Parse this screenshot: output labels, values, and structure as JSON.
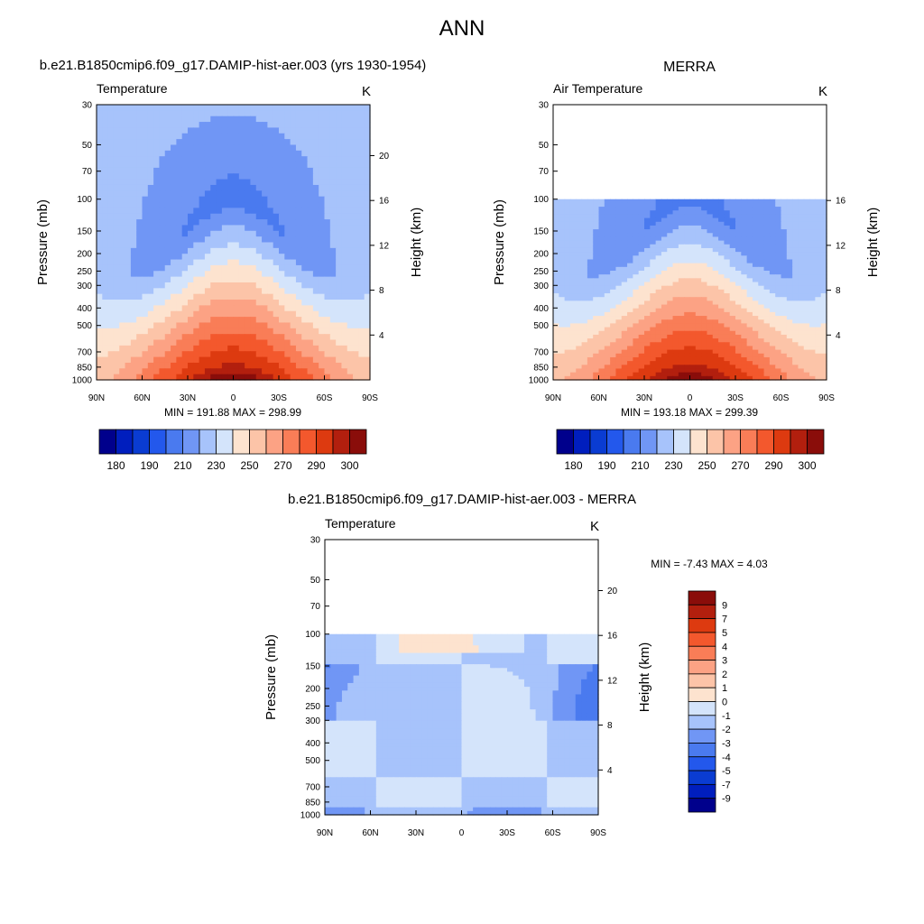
{
  "title": "ANN",
  "chart_data": [
    {
      "type": "heatmap",
      "panel": "model",
      "title": "b.e21.B1850cmip6.f09_g17.DAMIP-hist-aer.003 (yrs 1930-1954)",
      "left_label": "Temperature",
      "units": "K",
      "ylabel": "Pressure (mb)",
      "y2label": "Height (km)",
      "stats": "MIN = 191.88  MAX = 298.99",
      "min": 191.88,
      "max": 298.99,
      "x_ticks": [
        "90N",
        "60N",
        "30N",
        "0",
        "30S",
        "60S",
        "90S"
      ],
      "pressure_ticks": [
        30,
        50,
        70,
        100,
        150,
        200,
        250,
        300,
        400,
        500,
        700,
        850,
        1000
      ],
      "height_ticks": [
        4,
        8,
        12,
        16,
        20
      ],
      "data_top_pressure": 30,
      "colorbar_ticks": [
        "180",
        "190",
        "210",
        "230",
        "250",
        "270",
        "290",
        "300"
      ],
      "levels": [
        175,
        180,
        185,
        190,
        200,
        210,
        220,
        230,
        240,
        250,
        260,
        270,
        280,
        290,
        295,
        300
      ]
    },
    {
      "type": "heatmap",
      "panel": "obs",
      "title": "MERRA",
      "left_label": "Air Temperature",
      "units": "K",
      "ylabel": "Pressure (mb)",
      "y2label": "Height (km)",
      "stats": "MIN = 193.18  MAX = 299.39",
      "min": 193.18,
      "max": 299.39,
      "x_ticks": [
        "90N",
        "60N",
        "30N",
        "0",
        "30S",
        "60S",
        "90S"
      ],
      "pressure_ticks": [
        30,
        50,
        70,
        100,
        150,
        200,
        250,
        300,
        400,
        500,
        700,
        850,
        1000
      ],
      "height_ticks": [
        4,
        8,
        12,
        16
      ],
      "data_top_pressure": 100,
      "colorbar_ticks": [
        "180",
        "190",
        "210",
        "230",
        "250",
        "270",
        "290",
        "300"
      ],
      "levels": [
        175,
        180,
        185,
        190,
        200,
        210,
        220,
        230,
        240,
        250,
        260,
        270,
        280,
        290,
        295,
        300
      ]
    },
    {
      "type": "heatmap",
      "panel": "diff",
      "title": "b.e21.B1850cmip6.f09_g17.DAMIP-hist-aer.003 - MERRA",
      "left_label": "Temperature",
      "units": "K",
      "ylabel": "Pressure (mb)",
      "y2label": "Height (km)",
      "stats": "MIN =  -7.43  MAX =   4.03",
      "min": -7.43,
      "max": 4.03,
      "x_ticks": [
        "90N",
        "60N",
        "30N",
        "0",
        "30S",
        "60S",
        "90S"
      ],
      "pressure_ticks": [
        30,
        50,
        70,
        100,
        150,
        200,
        250,
        300,
        400,
        500,
        700,
        850,
        1000
      ],
      "height_ticks": [
        4,
        8,
        12,
        16,
        20
      ],
      "data_top_pressure": 100,
      "colorbar_ticks": [
        "9",
        "7",
        "5",
        "4",
        "3",
        "2",
        "1",
        "0",
        "-1",
        "-2",
        "-3",
        "-4",
        "-5",
        "-7",
        "-9"
      ],
      "levels": [
        -9,
        -7,
        -5,
        -4,
        -3,
        -2,
        -1,
        0,
        1,
        2,
        3,
        4,
        5,
        7,
        9
      ]
    }
  ],
  "colors": {
    "abs_scale": [
      "#00008c",
      "#001ebe",
      "#0a3cd2",
      "#2358ec",
      "#4a7aef",
      "#7096f5",
      "#a7c3fb",
      "#d4e4fb",
      "#fde3cf",
      "#fcc4a8",
      "#fca284",
      "#f97d57",
      "#f3582d",
      "#dd3a10",
      "#b21f0e",
      "#8a0d0a"
    ],
    "diff_scale": [
      "#00008c",
      "#001ebe",
      "#0a3cd2",
      "#2358ec",
      "#4a7aef",
      "#7096f5",
      "#a7c3fb",
      "#d4e4fb",
      "#fde3cf",
      "#fcc4a8",
      "#fca284",
      "#f97d57",
      "#f3582d",
      "#dd3a10",
      "#b21f0e",
      "#8a0d0a"
    ]
  }
}
